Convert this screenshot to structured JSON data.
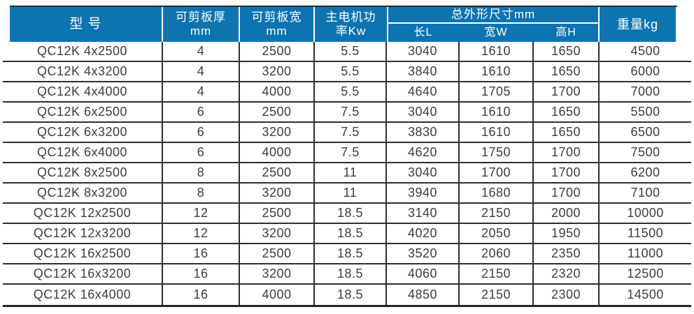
{
  "colors": {
    "header_bg": "#0e74b0",
    "header_text": "#ffffff",
    "body_text": "#3c3c3c",
    "grid_line": "#2e2e2e"
  },
  "table": {
    "header": {
      "model": "型 号",
      "thickness_line1": "可剪板厚",
      "thickness_line2": "mm",
      "width_line1": "可剪板宽",
      "width_line2": "mm",
      "power_line1": "主电机功",
      "power_line2": "率Kw",
      "dims_group": "总外形尺寸mm",
      "dim_length": "长L",
      "dim_width": "宽W",
      "dim_height": "高H",
      "weight": "重量kg"
    },
    "rows": [
      {
        "model": "QC12K 4x2500",
        "thickness": "4",
        "width": "2500",
        "power": "5.5",
        "length": "3040",
        "w": "1610",
        "h": "1650",
        "weight": "4500"
      },
      {
        "model": "QC12K 4x3200",
        "thickness": "4",
        "width": "3200",
        "power": "5.5",
        "length": "3840",
        "w": "1610",
        "h": "1650",
        "weight": "6000"
      },
      {
        "model": "QC12K 4x4000",
        "thickness": "4",
        "width": "4000",
        "power": "5.5",
        "length": "4640",
        "w": "1705",
        "h": "1700",
        "weight": "7000"
      },
      {
        "model": "QC12K 6x2500",
        "thickness": "6",
        "width": "2500",
        "power": "7.5",
        "length": "3040",
        "w": "1610",
        "h": "1650",
        "weight": "5500"
      },
      {
        "model": "QC12K 6x3200",
        "thickness": "6",
        "width": "3200",
        "power": "7.5",
        "length": "3830",
        "w": "1610",
        "h": "1650",
        "weight": "6500"
      },
      {
        "model": "QC12K 6x4000",
        "thickness": "6",
        "width": "4000",
        "power": "7.5",
        "length": "4620",
        "w": "1750",
        "h": "1700",
        "weight": "7500"
      },
      {
        "model": "QC12K 8x2500",
        "thickness": "8",
        "width": "2500",
        "power": "11",
        "length": "3040",
        "w": "1700",
        "h": "1700",
        "weight": "6200"
      },
      {
        "model": "QC12K 8x3200",
        "thickness": "8",
        "width": "3200",
        "power": "11",
        "length": "3940",
        "w": "1680",
        "h": "1700",
        "weight": "7100"
      },
      {
        "model": "QC12K 12x2500",
        "thickness": "12",
        "width": "2500",
        "power": "18.5",
        "length": "3140",
        "w": "2150",
        "h": "2000",
        "weight": "10000"
      },
      {
        "model": "QC12K 12x3200",
        "thickness": "12",
        "width": "3200",
        "power": "18.5",
        "length": "4020",
        "w": "2050",
        "h": "1950",
        "weight": "11500"
      },
      {
        "model": "QC12K 16x2500",
        "thickness": "16",
        "width": "2500",
        "power": "18.5",
        "length": "3520",
        "w": "2060",
        "h": "2350",
        "weight": "11000"
      },
      {
        "model": "QC12K 16x3200",
        "thickness": "16",
        "width": "3200",
        "power": "18.5",
        "length": "4060",
        "w": "2150",
        "h": "2320",
        "weight": "12500"
      },
      {
        "model": "QC12K 16x4000",
        "thickness": "16",
        "width": "4000",
        "power": "18.5",
        "length": "4850",
        "w": "2150",
        "h": "2300",
        "weight": "14500"
      }
    ]
  }
}
